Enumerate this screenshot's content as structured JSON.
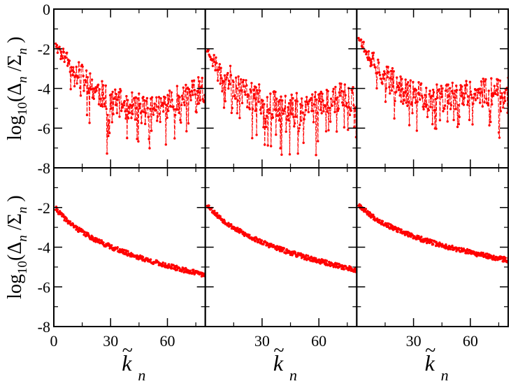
{
  "chart_data": {
    "type": "scatter",
    "layout": {
      "rows": 2,
      "cols": 3
    },
    "xlabel": {
      "base": "k",
      "accent": "~",
      "sub": "n"
    },
    "ylabel": {
      "fn": "log",
      "fn_sub": "10",
      "num": "Δ",
      "den": "Σ",
      "sub": "n"
    },
    "xlim": [
      0,
      80
    ],
    "ylim": [
      -8,
      0
    ],
    "yticks": [
      0,
      -2,
      -4,
      -6,
      -8
    ],
    "xticks": [
      0,
      30,
      60
    ],
    "series_color": "#ff0000",
    "panels": [
      {
        "row": 0,
        "col": 0,
        "style": "noisy",
        "start_y": -1.5,
        "floor_y": -5.0,
        "end_y": -4.0,
        "min_x": 55,
        "spread": 1.2,
        "seed": 11
      },
      {
        "row": 0,
        "col": 1,
        "style": "noisy",
        "start_y": -1.9,
        "floor_y": -4.9,
        "end_y": -4.2,
        "min_x": 50,
        "spread": 1.3,
        "seed": 23
      },
      {
        "row": 0,
        "col": 2,
        "style": "noisy",
        "start_y": -1.2,
        "floor_y": -4.5,
        "end_y": -4.0,
        "min_x": 45,
        "spread": 1.2,
        "seed": 37
      },
      {
        "row": 1,
        "col": 0,
        "style": "smooth",
        "start_y": -2.0,
        "end_y": -5.4,
        "spread": 0.1,
        "seed": 41
      },
      {
        "row": 1,
        "col": 1,
        "style": "smooth",
        "start_y": -1.8,
        "end_y": -5.15,
        "spread": 0.1,
        "seed": 53
      },
      {
        "row": 1,
        "col": 2,
        "style": "smooth",
        "start_y": -1.8,
        "end_y": -4.65,
        "spread": 0.1,
        "seed": 67
      }
    ]
  }
}
